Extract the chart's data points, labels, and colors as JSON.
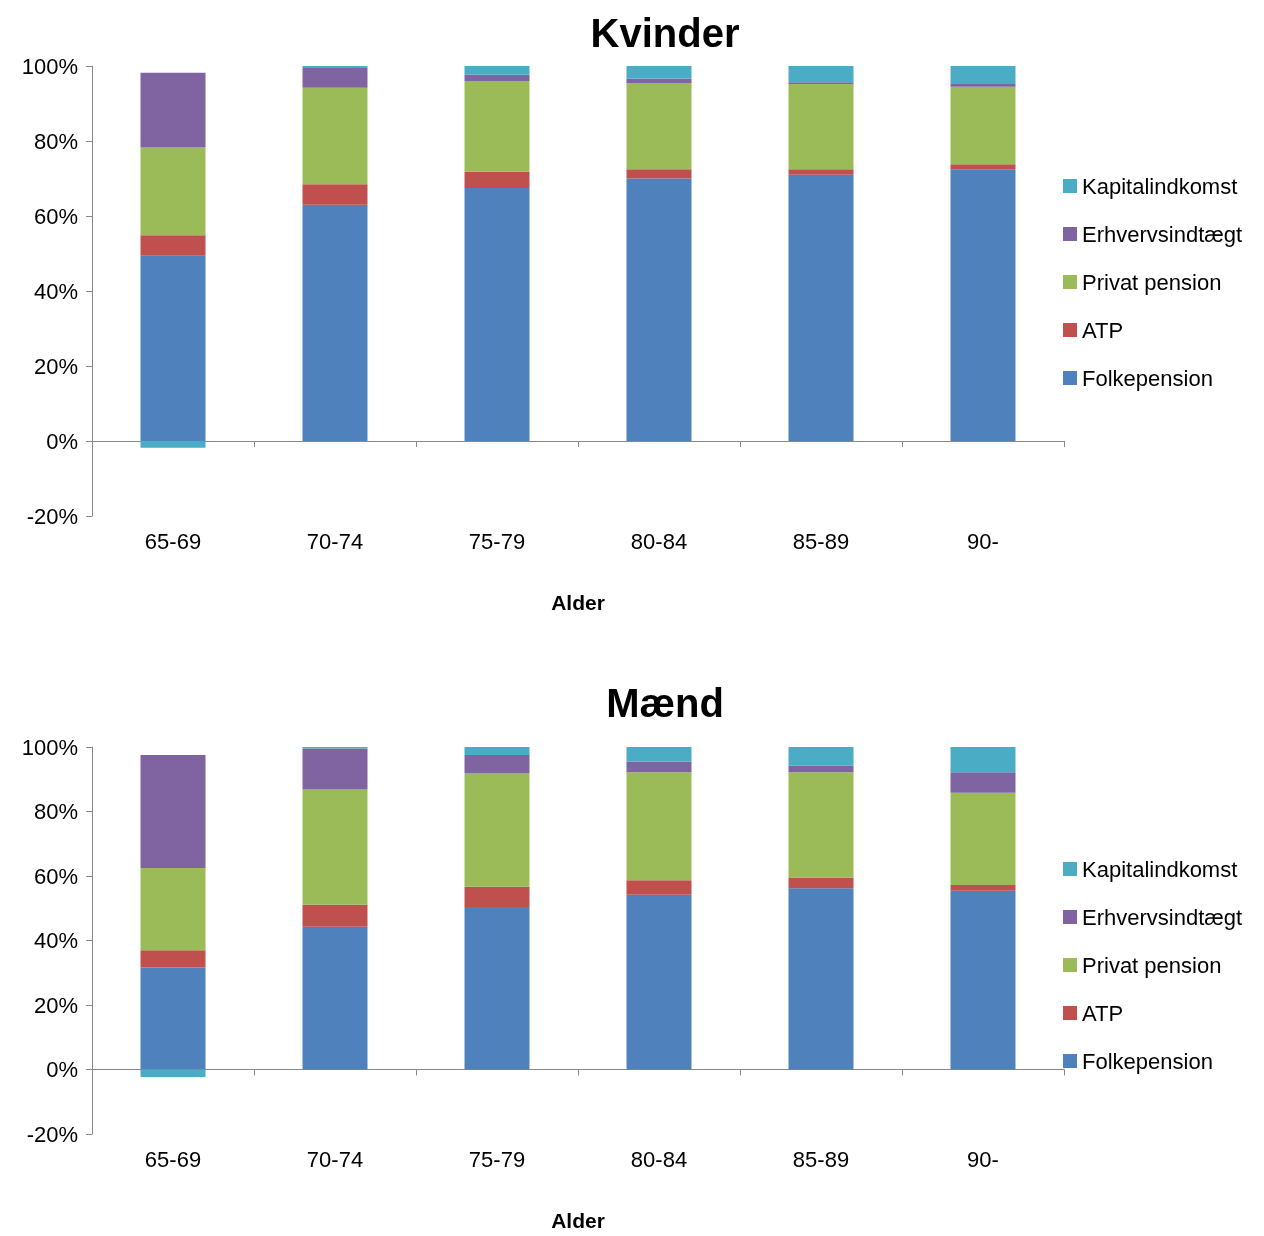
{
  "chart_data": [
    {
      "type": "bar",
      "title": "Kvinder",
      "xlabel": "Alder",
      "stacked": true,
      "legend": "right",
      "categories": [
        "65-69",
        "70-74",
        "75-79",
        "80-84",
        "85-89",
        "90-"
      ],
      "ylim": [
        -20,
        100
      ],
      "yticks": [
        {
          "value": -20,
          "label": "-20%"
        },
        {
          "value": 0,
          "label": "0%"
        },
        {
          "value": 20,
          "label": "20%"
        },
        {
          "value": 40,
          "label": "40%"
        },
        {
          "value": 60,
          "label": "60%"
        },
        {
          "value": 80,
          "label": "80%"
        },
        {
          "value": 100,
          "label": "100%"
        }
      ],
      "series": [
        {
          "name": "Folkepension",
          "color": "#4f81bd",
          "values": [
            49.4,
            63.0,
            67.5,
            70.0,
            71.0,
            72.5
          ]
        },
        {
          "name": "ATP",
          "color": "#c0504d",
          "values": [
            5.5,
            5.5,
            4.3,
            2.5,
            1.5,
            1.3
          ]
        },
        {
          "name": "Privat pension",
          "color": "#9bbb59",
          "values": [
            23.4,
            25.7,
            24.2,
            23.0,
            22.7,
            20.7
          ]
        },
        {
          "name": "Erhvervsindtægt",
          "color": "#8064a2",
          "values": [
            19.9,
            5.3,
            1.7,
            1.2,
            0.5,
            0.7
          ]
        },
        {
          "name": "Kapitalindkomst",
          "color": "#4bacc6",
          "values": [
            -1.8,
            0.5,
            2.3,
            3.3,
            4.3,
            4.8
          ]
        }
      ]
    },
    {
      "type": "bar",
      "title": "Mænd",
      "xlabel": "Alder",
      "stacked": true,
      "legend": "right",
      "categories": [
        "65-69",
        "70-74",
        "75-79",
        "80-84",
        "85-89",
        "90-"
      ],
      "ylim": [
        -20,
        100
      ],
      "yticks": [
        {
          "value": -20,
          "label": "-20%"
        },
        {
          "value": 0,
          "label": "0%"
        },
        {
          "value": 20,
          "label": "20%"
        },
        {
          "value": 40,
          "label": "40%"
        },
        {
          "value": 60,
          "label": "60%"
        },
        {
          "value": 80,
          "label": "80%"
        },
        {
          "value": 100,
          "label": "100%"
        }
      ],
      "series": [
        {
          "name": "Folkepension",
          "color": "#4f81bd",
          "values": [
            31.6,
            44.3,
            50.4,
            54.2,
            56.2,
            55.4
          ]
        },
        {
          "name": "ATP",
          "color": "#c0504d",
          "values": [
            5.4,
            6.8,
            6.3,
            4.5,
            3.3,
            1.8
          ]
        },
        {
          "name": "Privat pension",
          "color": "#9bbb59",
          "values": [
            25.5,
            35.7,
            35.2,
            33.5,
            32.7,
            28.6
          ]
        },
        {
          "name": "Erhvervsindtægt",
          "color": "#8064a2",
          "values": [
            35.0,
            12.7,
            5.6,
            3.2,
            2.0,
            6.4
          ]
        },
        {
          "name": "Kapitalindkomst",
          "color": "#4bacc6",
          "values": [
            -2.3,
            0.5,
            2.5,
            4.6,
            5.8,
            7.8
          ]
        }
      ]
    }
  ]
}
